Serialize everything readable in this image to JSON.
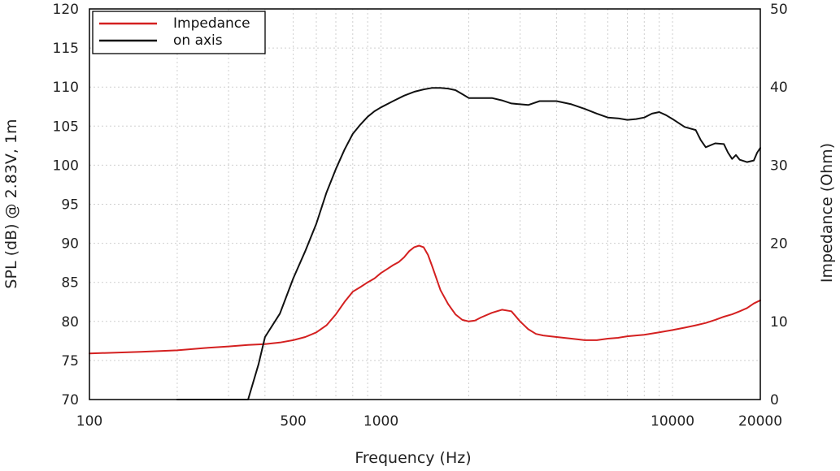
{
  "chart_data": {
    "type": "line",
    "xlabel": "Frequency (Hz)",
    "ylabel": "SPL (dB) @ 2.83V, 1m",
    "y2label": "Impedance (Ohm)",
    "xscale": "log",
    "xlim": [
      100,
      20000
    ],
    "ylim": [
      70,
      120
    ],
    "y2lim": [
      0,
      50
    ],
    "x_ticks": [
      100,
      500,
      1000,
      10000,
      20000
    ],
    "y_ticks": [
      70,
      75,
      80,
      85,
      90,
      95,
      100,
      105,
      110,
      115,
      120
    ],
    "y2_ticks": [
      0,
      10,
      20,
      30,
      40,
      50
    ],
    "grid": true,
    "legend_position": "top-left",
    "series": [
      {
        "name": "Impedance",
        "axis": "right",
        "color": "#d42020",
        "x": [
          100,
          150,
          200,
          250,
          300,
          350,
          400,
          450,
          500,
          550,
          600,
          650,
          700,
          750,
          800,
          850,
          900,
          950,
          1000,
          1050,
          1100,
          1150,
          1200,
          1250,
          1300,
          1350,
          1400,
          1450,
          1500,
          1600,
          1700,
          1800,
          1900,
          2000,
          2100,
          2200,
          2400,
          2600,
          2800,
          3000,
          3200,
          3400,
          3600,
          4000,
          4500,
          5000,
          5500,
          6000,
          6500,
          7000,
          7500,
          8000,
          9000,
          10000,
          11000,
          12000,
          13000,
          14000,
          15000,
          16000,
          17000,
          18000,
          19000,
          20000
        ],
        "values": [
          5.9,
          6.1,
          6.3,
          6.6,
          6.8,
          7.0,
          7.1,
          7.3,
          7.6,
          8.0,
          8.6,
          9.5,
          10.9,
          12.5,
          13.8,
          14.4,
          15.0,
          15.5,
          16.2,
          16.7,
          17.2,
          17.6,
          18.2,
          19.0,
          19.5,
          19.7,
          19.5,
          18.5,
          17.0,
          14.0,
          12.2,
          10.9,
          10.2,
          10.0,
          10.1,
          10.5,
          11.1,
          11.5,
          11.3,
          10.0,
          9.0,
          8.4,
          8.2,
          8.0,
          7.8,
          7.6,
          7.6,
          7.8,
          7.9,
          8.1,
          8.2,
          8.3,
          8.6,
          8.9,
          9.2,
          9.5,
          9.8,
          10.2,
          10.6,
          10.9,
          11.3,
          11.7,
          12.3,
          12.7
        ]
      },
      {
        "name": "on axis",
        "axis": "left",
        "color": "#111111",
        "x": [
          200,
          240,
          270,
          300,
          330,
          350,
          380,
          400,
          450,
          500,
          550,
          600,
          650,
          700,
          750,
          800,
          850,
          900,
          950,
          1000,
          1100,
          1200,
          1300,
          1400,
          1500,
          1600,
          1700,
          1800,
          1900,
          2000,
          2200,
          2400,
          2600,
          2800,
          3000,
          3200,
          3500,
          3800,
          4000,
          4500,
          5000,
          5500,
          6000,
          6500,
          7000,
          7500,
          8000,
          8500,
          9000,
          9500,
          10000,
          11000,
          12000,
          12500,
          13000,
          14000,
          15000,
          15500,
          16000,
          16500,
          17000,
          18000,
          19000,
          19500,
          20000
        ],
        "values": [
          70.0,
          70.0,
          69.8,
          69.8,
          69.9,
          70.0,
          74.5,
          78.0,
          81.0,
          85.5,
          89.0,
          92.5,
          96.5,
          99.5,
          102.0,
          104.0,
          105.2,
          106.2,
          106.9,
          107.4,
          108.2,
          108.9,
          109.4,
          109.7,
          109.9,
          109.9,
          109.8,
          109.6,
          109.1,
          108.6,
          108.6,
          108.6,
          108.3,
          107.9,
          107.8,
          107.7,
          108.2,
          108.2,
          108.2,
          107.8,
          107.2,
          106.6,
          106.1,
          106.0,
          105.8,
          105.9,
          106.1,
          106.6,
          106.8,
          106.4,
          105.9,
          104.9,
          104.5,
          103.2,
          102.3,
          102.8,
          102.7,
          101.6,
          100.8,
          101.3,
          100.7,
          100.4,
          100.6,
          101.6,
          102.2
        ]
      }
    ]
  }
}
